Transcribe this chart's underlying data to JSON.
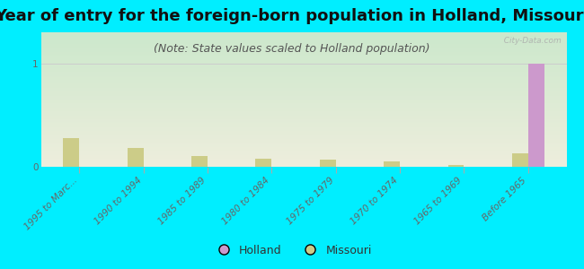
{
  "title": "Year of entry for the foreign-born population in Holland, Missouri",
  "subtitle": "(Note: State values scaled to Holland population)",
  "background_color": "#00eeff",
  "plot_bg_top": "#cce8cc",
  "plot_bg_bottom": "#eeeedd",
  "categories": [
    "1995 to Marc...",
    "1990 to 1994",
    "1985 to 1989",
    "1980 to 1984",
    "1975 to 1979",
    "1970 to 1974",
    "1965 to 1969",
    "Before 1965"
  ],
  "holland_values": [
    0,
    0,
    0,
    0,
    0,
    0,
    0,
    1
  ],
  "missouri_vals": [
    0.28,
    0.18,
    0.1,
    0.08,
    0.07,
    0.05,
    0.02,
    0.13
  ],
  "holland_color": "#cc99cc",
  "missouri_color": "#cccc88",
  "bar_width": 0.25,
  "ylim": [
    0,
    1.3
  ],
  "yticks": [
    0,
    1
  ],
  "watermark": "  City-Data.com",
  "title_fontsize": 13,
  "subtitle_fontsize": 9,
  "tick_fontsize": 7.5,
  "legend_fontsize": 9
}
